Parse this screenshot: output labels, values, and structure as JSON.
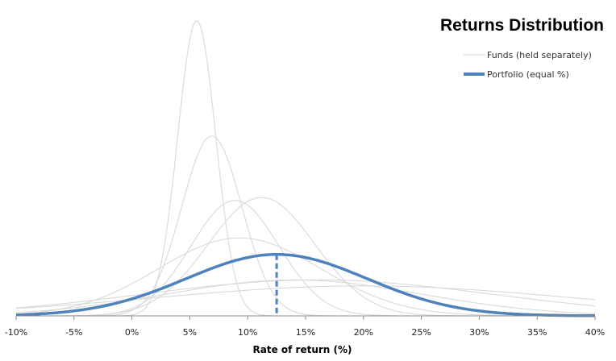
{
  "chart_data": {
    "type": "line",
    "title": "Returns Distribution",
    "xlabel": "Rate of return (%)",
    "ylabel": "",
    "x_tick_values": [
      -10,
      -5,
      0,
      5,
      10,
      15,
      20,
      25,
      30,
      35,
      40
    ],
    "x_tick_labels": [
      "-10%",
      "-5%",
      "0%",
      "5%",
      "10%",
      "15%",
      "20%",
      "25%",
      "30%",
      "35%",
      "40%"
    ],
    "xlim": [
      -10,
      40
    ],
    "ylim": [
      0,
      1.0
    ],
    "grid": false,
    "legend_position": "top-right",
    "legend": [
      {
        "label": "Funds (held separately)",
        "color": "#d9d9d9"
      },
      {
        "label": "Portfolio (equal %)",
        "color": "#4f81bd"
      }
    ],
    "funds": [
      {
        "mean": 5.6,
        "sd": 1.65,
        "peak": 0.985
      },
      {
        "mean": 6.9,
        "sd": 2.6,
        "peak": 0.6
      },
      {
        "mean": 8.9,
        "sd": 3.8,
        "peak": 0.385
      },
      {
        "mean": 11.2,
        "sd": 4.6,
        "peak": 0.395
      },
      {
        "mean": 9.3,
        "sd": 7.0,
        "peak": 0.26
      },
      {
        "mean": 14.0,
        "sd": 11.0,
        "peak": 0.12
      },
      {
        "mean": 16.0,
        "sd": 15.0,
        "peak": 0.12
      },
      {
        "mean": 20.0,
        "sd": 18.0,
        "peak": 0.1
      }
    ],
    "portfolio": {
      "mean": 12.5,
      "sd": 7.8,
      "peak": 0.205,
      "marker_x": 12.5
    }
  }
}
